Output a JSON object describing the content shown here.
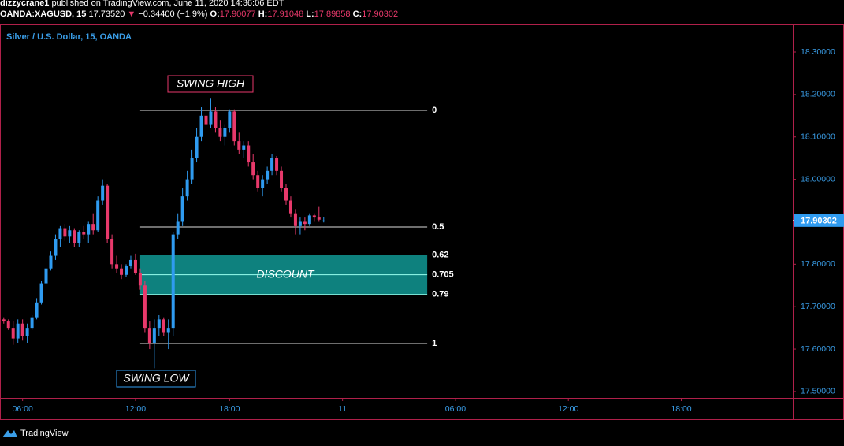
{
  "header": {
    "author": "dizzycrane1",
    "published": "published on TradingView.com, June 11, 2020 14:36:06 EDT",
    "symbol": "OANDA:XAGUSD, 15",
    "price": "17.73520",
    "arrow": "▼",
    "change": "−0.34400 (−1.9%)",
    "ohlc_labels": [
      "O:",
      "H:",
      "L:",
      "C:"
    ]
  },
  "chart_data": {
    "type": "candlestick",
    "title": "Silver / U.S. Dollar, 15, OANDA",
    "open": [
      17.67,
      17.665,
      17.65,
      17.625,
      17.66,
      17.63,
      17.65,
      17.675,
      17.71,
      17.755,
      17.79,
      17.82,
      17.86,
      17.885,
      17.865,
      17.88,
      17.85,
      17.875,
      17.87,
      17.895,
      17.88,
      17.95,
      17.985,
      17.86,
      17.8,
      17.79,
      17.775,
      17.795,
      17.81,
      17.78,
      17.75,
      17.65,
      17.615,
      17.65,
      17.67,
      17.64,
      17.65,
      17.87,
      17.9,
      17.96,
      18.0,
      18.05,
      18.1,
      18.15,
      18.13,
      18.16,
      18.12,
      18.1,
      18.12,
      18.16,
      18.09,
      18.07,
      18.08,
      18.04,
      18.01,
      17.98,
      18.0,
      18.02,
      18.05,
      18.02,
      17.98,
      17.95,
      17.92,
      17.89,
      17.9,
      17.895,
      17.915,
      17.91,
      17.90077
    ],
    "high": [
      17.675,
      17.67,
      17.665,
      17.67,
      17.67,
      17.66,
      17.68,
      17.72,
      17.76,
      17.8,
      17.83,
      17.87,
      17.89,
      17.895,
      17.89,
      17.885,
      17.88,
      17.89,
      17.9,
      17.92,
      17.96,
      18.0,
      17.99,
      17.87,
      17.82,
      17.8,
      17.8,
      17.82,
      17.825,
      17.79,
      17.76,
      17.665,
      17.67,
      17.68,
      17.675,
      17.67,
      17.875,
      17.92,
      17.98,
      18.02,
      18.07,
      18.12,
      18.17,
      18.18,
      18.19,
      18.17,
      18.14,
      18.13,
      18.165,
      18.165,
      18.11,
      18.09,
      18.09,
      18.06,
      18.02,
      18.01,
      18.03,
      18.06,
      18.055,
      18.03,
      17.99,
      17.96,
      17.93,
      17.91,
      17.91,
      17.92,
      17.92,
      17.935,
      17.91048
    ],
    "low": [
      17.66,
      17.645,
      17.61,
      17.615,
      17.62,
      17.615,
      17.645,
      17.67,
      17.705,
      17.75,
      17.785,
      17.81,
      17.84,
      17.855,
      17.85,
      17.84,
      17.84,
      17.86,
      17.85,
      17.87,
      17.875,
      17.94,
      17.85,
      17.79,
      17.78,
      17.765,
      17.77,
      17.79,
      17.775,
      17.74,
      17.64,
      17.6,
      17.555,
      17.63,
      17.63,
      17.6,
      17.63,
      17.86,
      17.89,
      17.95,
      17.99,
      18.04,
      18.09,
      18.12,
      18.12,
      18.11,
      18.09,
      18.08,
      18.11,
      18.08,
      18.06,
      18.05,
      18.03,
      18.0,
      17.97,
      17.96,
      17.99,
      18.01,
      18.01,
      17.97,
      17.94,
      17.91,
      17.87,
      17.87,
      17.88,
      17.89,
      17.9,
      17.9,
      17.89858
    ],
    "close": [
      17.665,
      17.65,
      17.625,
      17.66,
      17.63,
      17.65,
      17.675,
      17.71,
      17.755,
      17.79,
      17.82,
      17.86,
      17.885,
      17.865,
      17.88,
      17.85,
      17.875,
      17.87,
      17.895,
      17.88,
      17.95,
      17.985,
      17.86,
      17.8,
      17.79,
      17.775,
      17.795,
      17.81,
      17.78,
      17.75,
      17.65,
      17.615,
      17.65,
      17.67,
      17.64,
      17.65,
      17.87,
      17.9,
      17.96,
      18.0,
      18.05,
      18.1,
      18.15,
      18.13,
      18.16,
      18.12,
      18.1,
      18.12,
      18.16,
      18.09,
      18.07,
      18.08,
      18.04,
      18.01,
      17.98,
      18.0,
      18.02,
      18.05,
      18.02,
      17.98,
      17.95,
      17.92,
      17.89,
      17.9,
      17.895,
      17.915,
      17.91,
      17.905,
      17.90302
    ],
    "up_color": "#2f9bf0",
    "down_color": "#e8396b",
    "xlim": [
      -0.8,
      167.7
    ],
    "xticks": [
      {
        "value": 4,
        "label": "06:00"
      },
      {
        "value": 28,
        "label": "12:00"
      },
      {
        "value": 48,
        "label": "18:00"
      },
      {
        "value": 72,
        "label": "11"
      },
      {
        "value": 96,
        "label": "06:00"
      },
      {
        "value": 120,
        "label": "12:00"
      },
      {
        "value": 144,
        "label": "18:00"
      }
    ],
    "ylim": [
      17.485,
      18.365
    ],
    "yticks": [
      {
        "value": 17.5,
        "label": "17.50000"
      },
      {
        "value": 17.6,
        "label": "17.60000"
      },
      {
        "value": 17.7,
        "label": "17.70000"
      },
      {
        "value": 17.8,
        "label": "17.80000"
      },
      {
        "value": 17.9,
        "label": "17.90000"
      },
      {
        "value": 18.0,
        "label": "18.00000"
      },
      {
        "value": 18.1,
        "label": "18.10000"
      },
      {
        "value": 18.2,
        "label": "18.20000"
      },
      {
        "value": 18.3,
        "label": "18.30000"
      }
    ],
    "fib": {
      "high": 18.1626,
      "low": 17.6132,
      "levels": [
        0,
        0.5,
        0.62,
        0.705,
        0.79,
        1
      ],
      "zone_color": "#0f8f8c"
    },
    "annotations": [
      "SWING HIGH",
      "SWING LOW",
      "DISCOUNT"
    ]
  },
  "footer": {
    "brand": "TradingView"
  }
}
